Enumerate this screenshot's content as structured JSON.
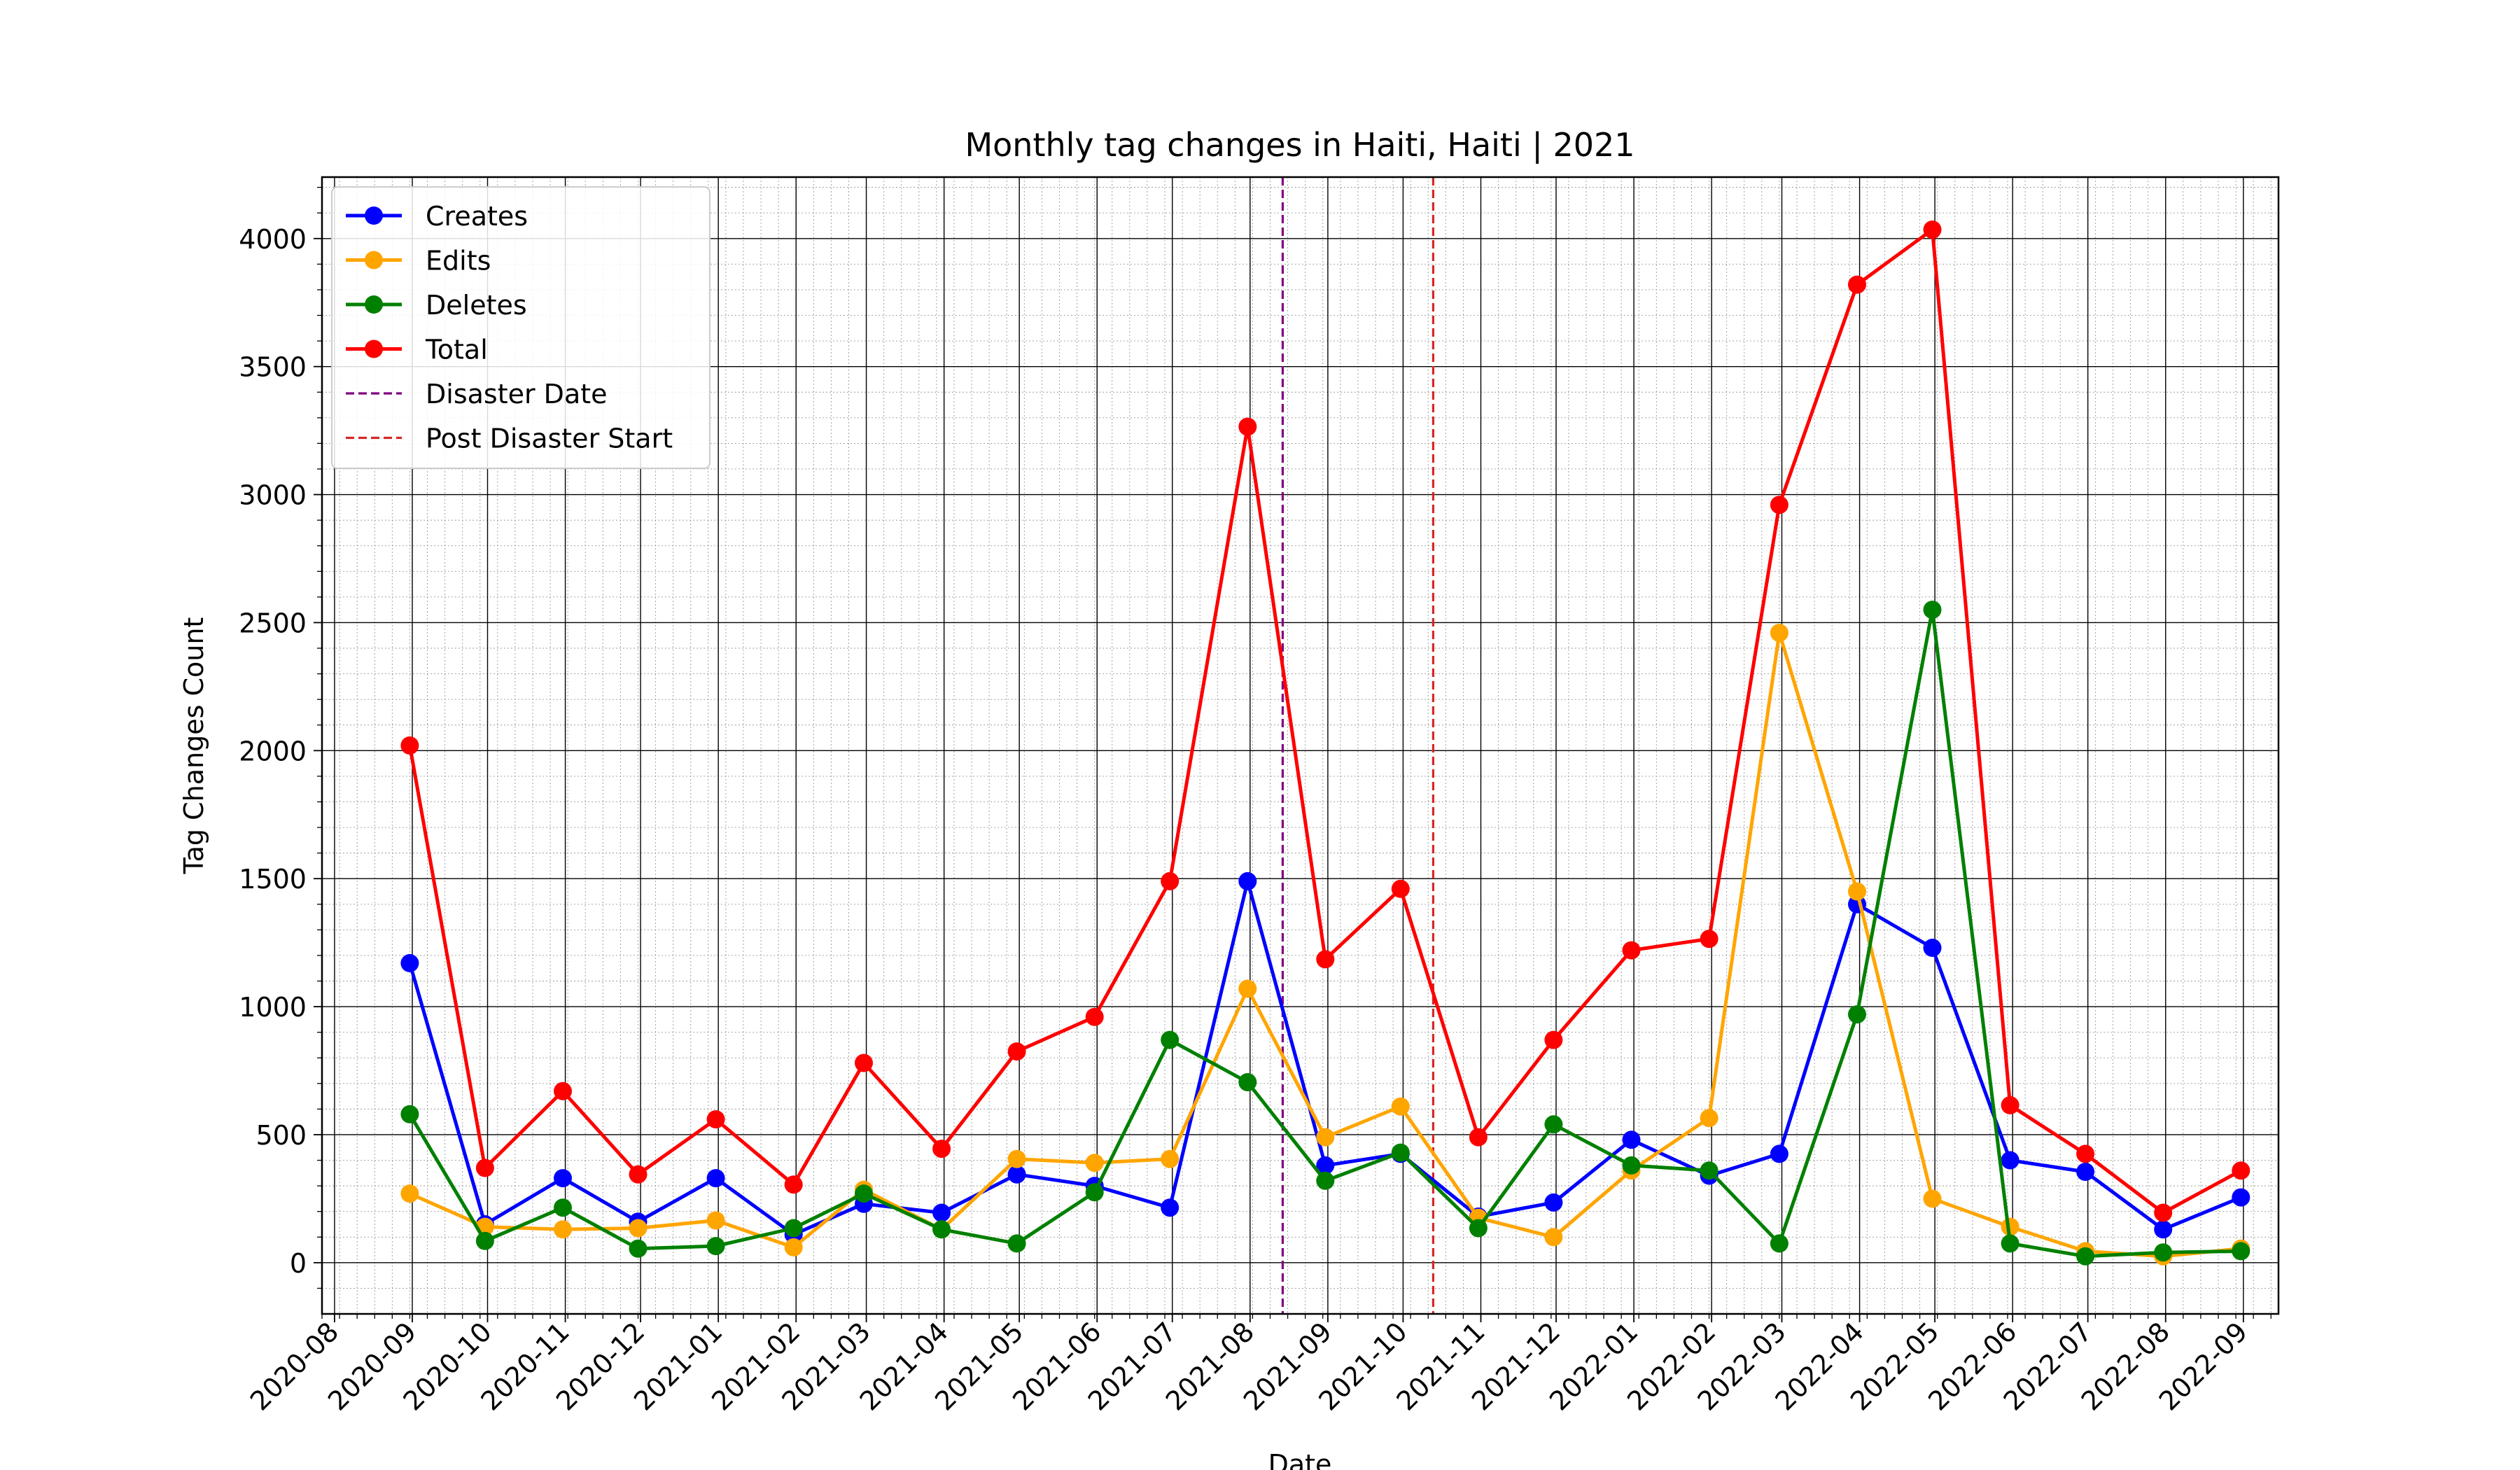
{
  "chart_data": {
    "type": "line",
    "title": "Monthly tag changes in Haiti, Haiti | 2021",
    "xlabel": "Date",
    "ylabel": "Tag Changes Count",
    "x_tick_labels": [
      "2020-08",
      "2020-09",
      "2020-10",
      "2020-11",
      "2020-12",
      "2021-01",
      "2021-02",
      "2021-03",
      "2021-04",
      "2021-05",
      "2021-06",
      "2021-07",
      "2021-08",
      "2021-09",
      "2021-10",
      "2021-11",
      "2021-12",
      "2022-01",
      "2022-02",
      "2022-03",
      "2022-04",
      "2022-05",
      "2022-06",
      "2022-07",
      "2022-08",
      "2022-09"
    ],
    "y_ticks": [
      0,
      500,
      1000,
      1500,
      2000,
      2500,
      3000,
      3500,
      4000
    ],
    "ylim": [
      -200,
      4240
    ],
    "xlim": [
      "2020-07-27",
      "2022-09-15"
    ],
    "grid": true,
    "legend_position": "top-left",
    "x": [
      "2020-08-31",
      "2020-09-30",
      "2020-10-31",
      "2020-11-30",
      "2020-12-31",
      "2021-01-31",
      "2021-02-28",
      "2021-03-31",
      "2021-04-30",
      "2021-05-31",
      "2021-06-30",
      "2021-07-31",
      "2021-08-31",
      "2021-09-30",
      "2021-10-31",
      "2021-11-30",
      "2021-12-31",
      "2022-01-31",
      "2022-02-28",
      "2022-03-31",
      "2022-04-30",
      "2022-05-31",
      "2022-06-30",
      "2022-07-31",
      "2022-08-31"
    ],
    "series": [
      {
        "name": "Creates",
        "color": "#0000ff",
        "values": [
          1170,
          150,
          330,
          160,
          330,
          110,
          230,
          195,
          345,
          300,
          215,
          1490,
          380,
          425,
          180,
          235,
          480,
          340,
          425,
          1400,
          1230,
          400,
          355,
          130,
          255
        ]
      },
      {
        "name": "Edits",
        "color": "#ffa500",
        "values": [
          270,
          140,
          130,
          135,
          165,
          60,
          285,
          130,
          405,
          390,
          405,
          1070,
          490,
          610,
          175,
          100,
          360,
          565,
          2460,
          1450,
          250,
          140,
          45,
          25,
          55
        ]
      },
      {
        "name": "Deletes",
        "color": "#008000",
        "values": [
          580,
          85,
          215,
          55,
          65,
          135,
          270,
          130,
          75,
          275,
          870,
          705,
          320,
          430,
          135,
          540,
          380,
          360,
          75,
          970,
          2550,
          75,
          25,
          40,
          45
        ]
      },
      {
        "name": "Total",
        "color": "#ff0000",
        "values": [
          2020,
          370,
          670,
          345,
          560,
          305,
          780,
          445,
          825,
          960,
          1490,
          3265,
          1185,
          1460,
          490,
          870,
          1220,
          1265,
          2960,
          3820,
          4035,
          615,
          425,
          195,
          360
        ]
      }
    ],
    "vlines": [
      {
        "name": "Disaster Date",
        "date": "2021-08-14",
        "color": "#800080"
      },
      {
        "name": "Post Disaster Start",
        "date": "2021-10-13",
        "color": "#d62728"
      }
    ]
  }
}
